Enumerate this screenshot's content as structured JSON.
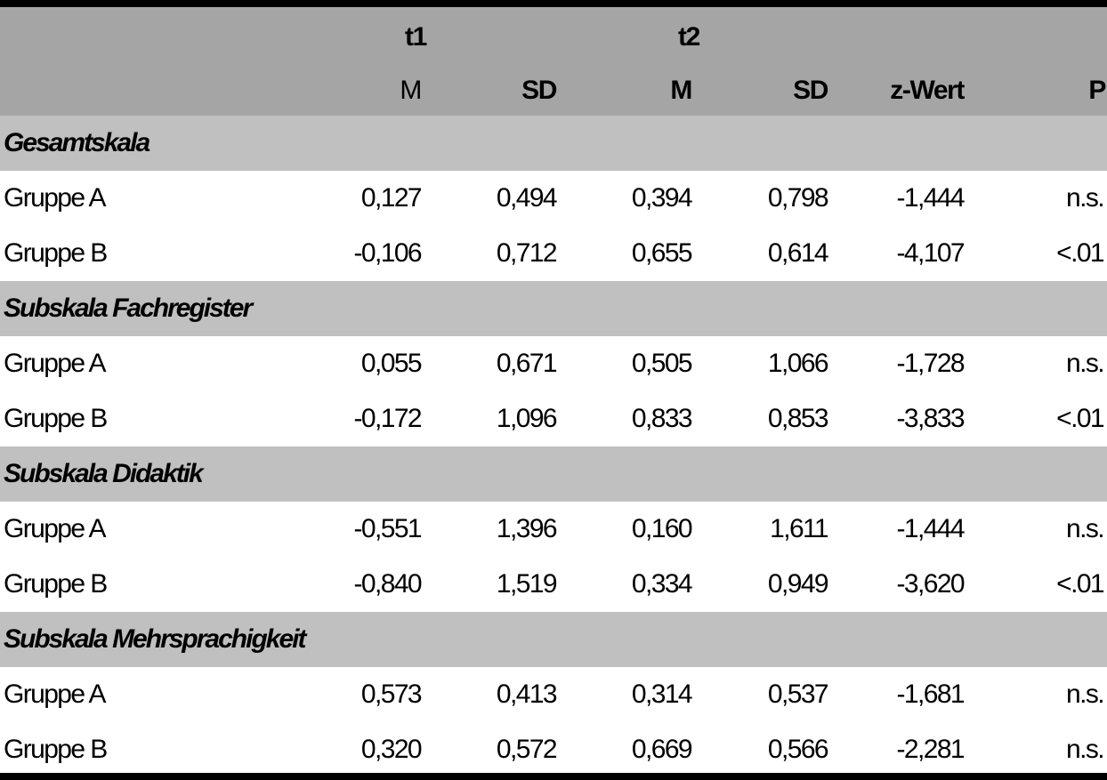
{
  "header": {
    "t1": "t1",
    "t2": "t2",
    "cols": [
      "M",
      "SD",
      "M",
      "SD",
      "z-Wert",
      "P"
    ]
  },
  "sections": [
    {
      "title": "Gesamtskala",
      "rows": [
        {
          "label": "Gruppe A",
          "values": [
            "0,127",
            "0,494",
            "0,394",
            "0,798",
            "-1,444",
            "n.s."
          ]
        },
        {
          "label": "Gruppe B",
          "values": [
            "-0,106",
            "0,712",
            "0,655",
            "0,614",
            "-4,107",
            "<.01"
          ]
        }
      ]
    },
    {
      "title": "Subskala Fachregister",
      "rows": [
        {
          "label": "Gruppe A",
          "values": [
            "0,055",
            "0,671",
            "0,505",
            "1,066",
            "-1,728",
            "n.s."
          ]
        },
        {
          "label": "Gruppe B",
          "values": [
            "-0,172",
            "1,096",
            "0,833",
            "0,853",
            "-3,833",
            "<.01"
          ]
        }
      ]
    },
    {
      "title": "Subskala Didaktik",
      "rows": [
        {
          "label": "Gruppe A",
          "values": [
            "-0,551",
            "1,396",
            "0,160",
            "1,611",
            "-1,444",
            "n.s."
          ]
        },
        {
          "label": "Gruppe B",
          "values": [
            "-0,840",
            "1,519",
            "0,334",
            "0,949",
            "-3,620",
            "<.01"
          ]
        }
      ]
    },
    {
      "title": "Subskala Mehrsprachigkeit",
      "rows": [
        {
          "label": "Gruppe A",
          "values": [
            "0,573",
            "0,413",
            "0,314",
            "0,537",
            "-1,681",
            "n.s."
          ]
        },
        {
          "label": "Gruppe B",
          "values": [
            "0,320",
            "0,572",
            "0,669",
            "0,566",
            "-2,281",
            "n.s."
          ]
        }
      ]
    }
  ]
}
